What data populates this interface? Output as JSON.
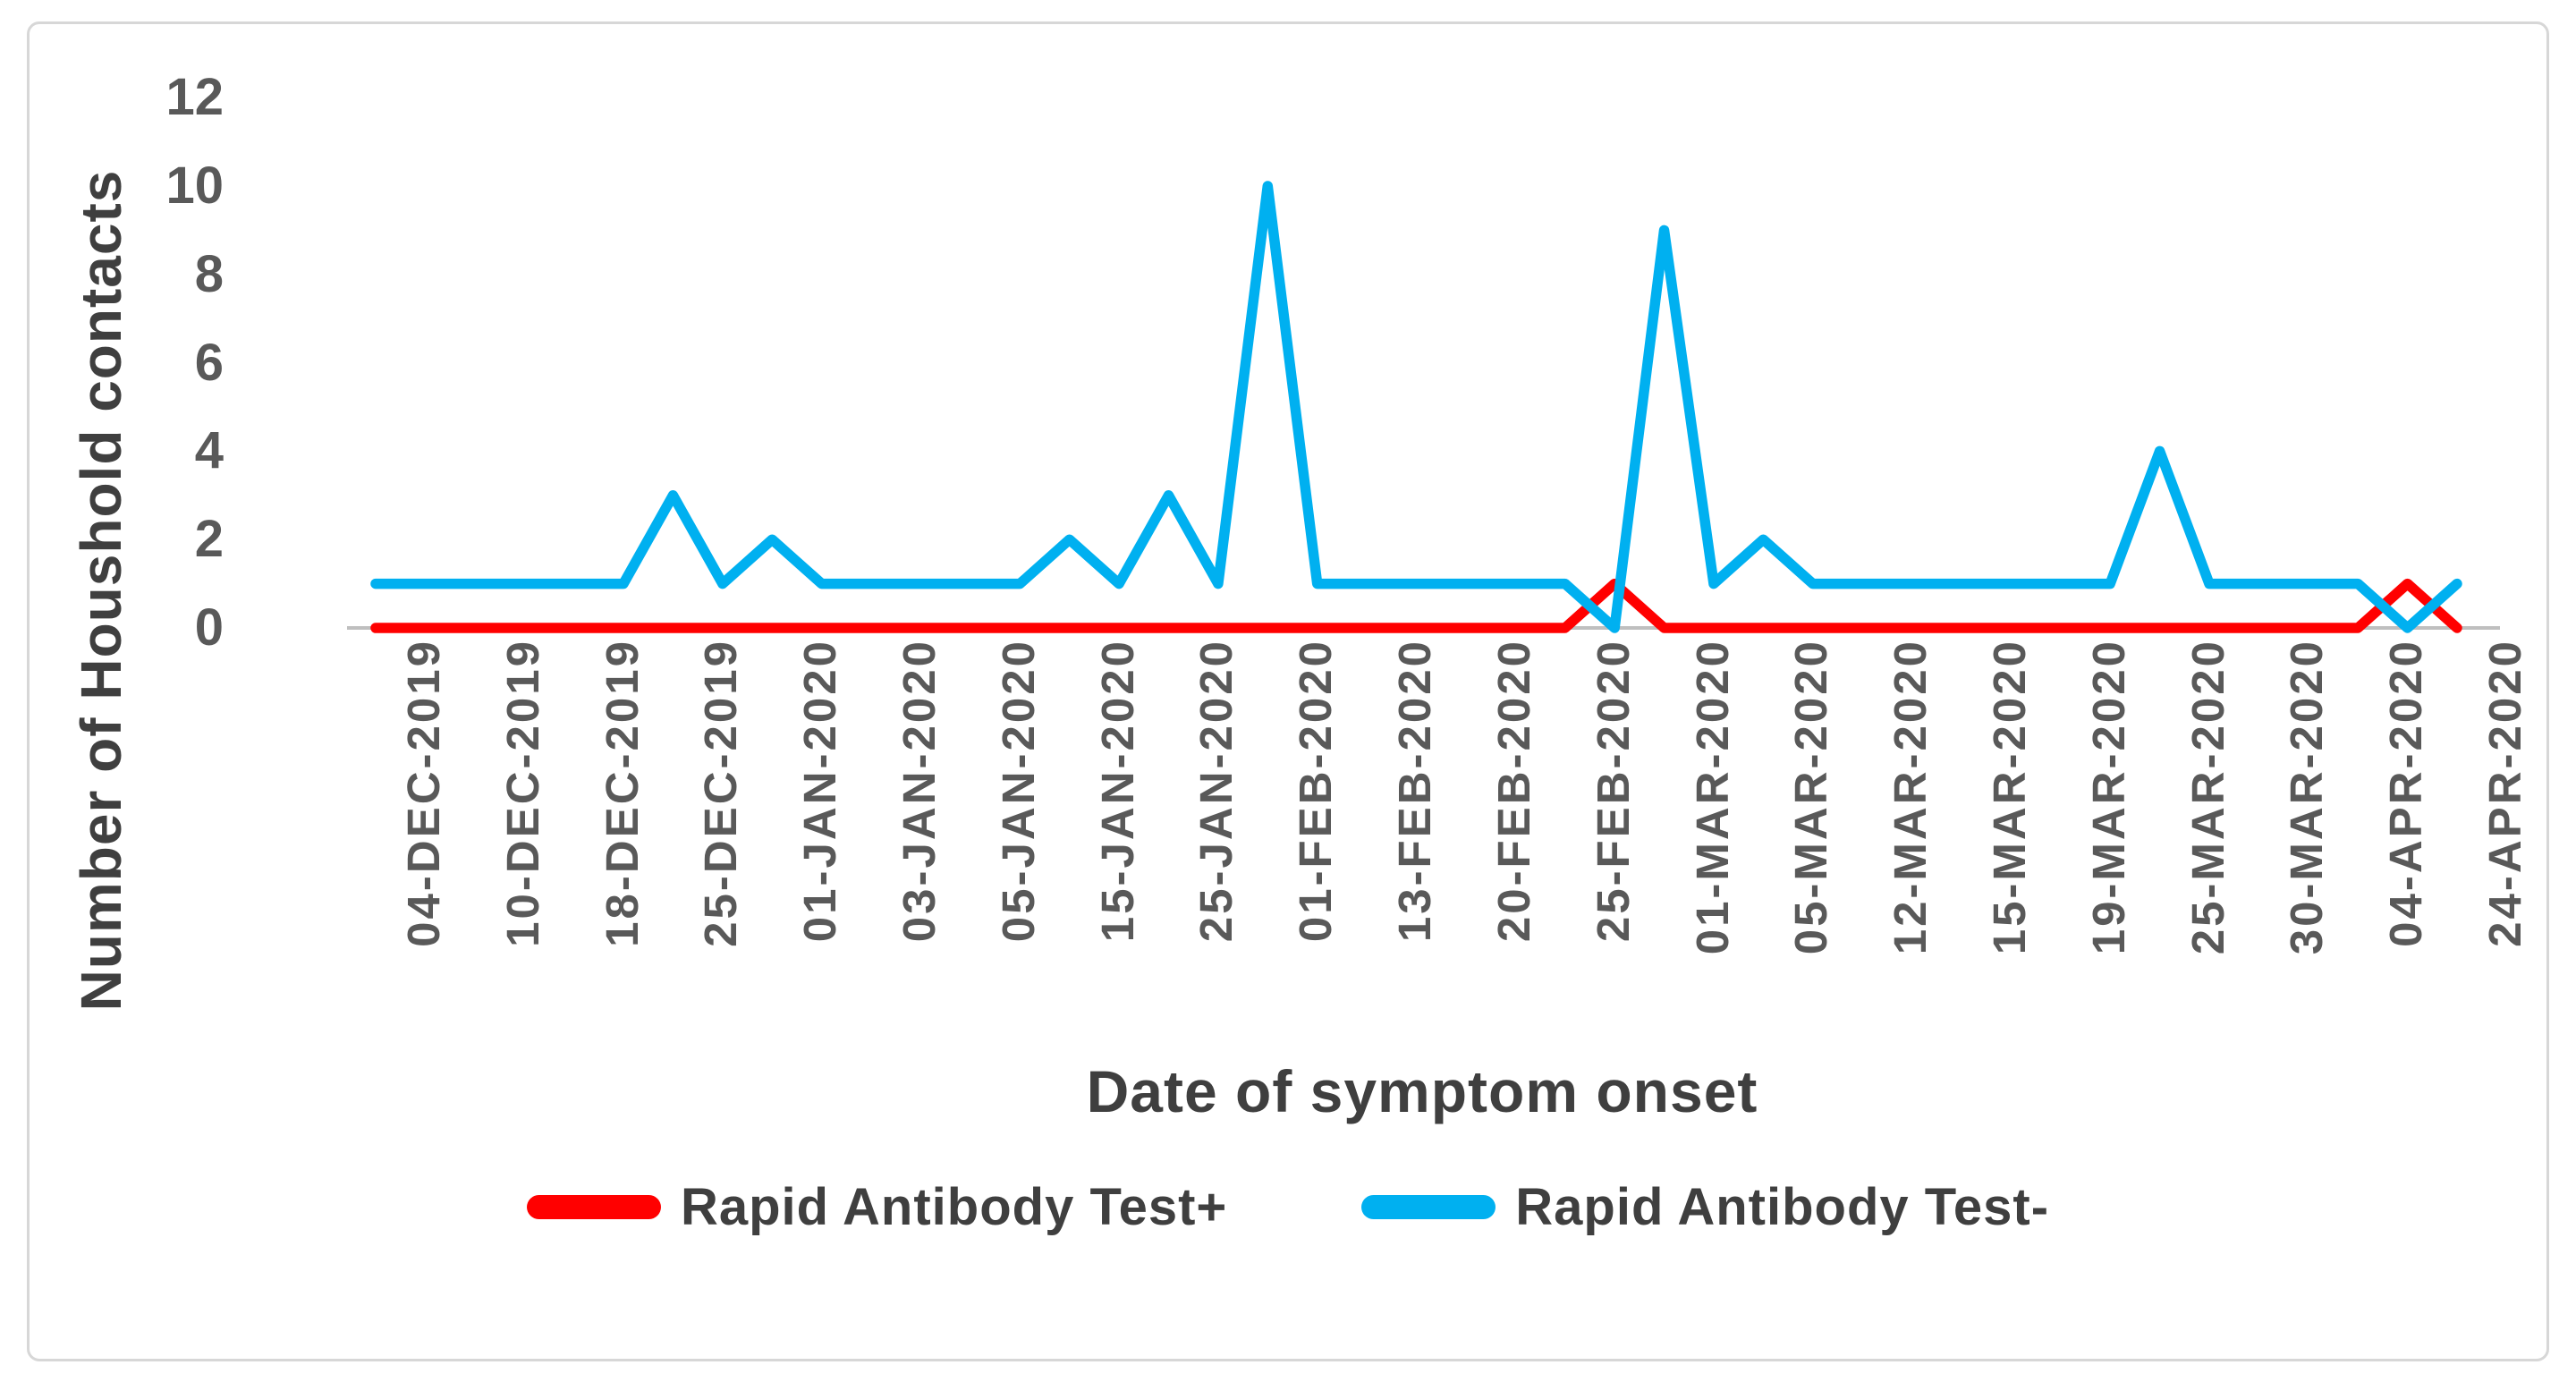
{
  "figure": {
    "background": "#FFFFFF",
    "border_color": "#D7D7D7",
    "axis_line_color": "#BFBFBF",
    "tick_text_color": "#595959",
    "title_text_color": "#3F3F3F"
  },
  "chart_data": {
    "type": "line",
    "title": "",
    "xlabel": "Date of symptom onset",
    "ylabel": "Number of Houshold contacts",
    "ylim": [
      0,
      12
    ],
    "yticks": [
      0,
      2,
      4,
      6,
      8,
      10,
      12
    ],
    "grid": false,
    "legend_position": "bottom-center",
    "x_point_count": 43,
    "x_labeled_every": 2,
    "x_tick_labels": [
      "04-DEC-2019",
      "10-DEC-2019",
      "18-DEC-2019",
      "25-DEC-2019",
      "01-JAN-2020",
      "03-JAN-2020",
      "05-JAN-2020",
      "15-JAN-2020",
      "25-JAN-2020",
      "01-FEB-2020",
      "13-FEB-2020",
      "20-FEB-2020",
      "25-FEB-2020",
      "01-MAR-2020",
      "05-MAR-2020",
      "12-MAR-2020",
      "15-MAR-2020",
      "19-MAR-2020",
      "25-MAR-2020",
      "30-MAR-2020",
      "04-APR-2020",
      "24-APR-2020"
    ],
    "series": [
      {
        "name": "Rapid Antibody Test+",
        "color": "#FF0000",
        "values": [
          0,
          0,
          0,
          0,
          0,
          0,
          0,
          0,
          0,
          0,
          0,
          0,
          0,
          0,
          0,
          0,
          0,
          0,
          0,
          0,
          0,
          0,
          0,
          0,
          0,
          1,
          0,
          0,
          0,
          0,
          0,
          0,
          0,
          0,
          0,
          0,
          0,
          0,
          0,
          0,
          0,
          1,
          0
        ]
      },
      {
        "name": "Rapid Antibody Test-",
        "color": "#00B0F0",
        "values": [
          1,
          1,
          1,
          1,
          1,
          1,
          3,
          1,
          2,
          1,
          1,
          1,
          1,
          1,
          2,
          1,
          3,
          1,
          10,
          1,
          1,
          1,
          1,
          1,
          1,
          0,
          9,
          1,
          2,
          1,
          1,
          1,
          1,
          1,
          1,
          1,
          4,
          1,
          1,
          1,
          1,
          0,
          1
        ]
      }
    ]
  }
}
